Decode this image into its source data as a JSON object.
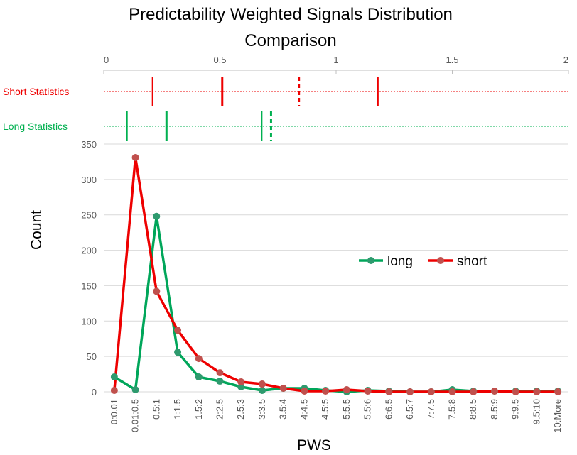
{
  "chart_data": {
    "type": "line",
    "title_line1": "Predictability Weighted Signals Distribution",
    "title_line2": "Comparison",
    "xlabel": "PWS",
    "ylabel": "Count",
    "ylim": [
      0,
      350
    ],
    "yticks": [
      "0",
      "50",
      "100",
      "150",
      "200",
      "250",
      "300",
      "350"
    ],
    "grid": true,
    "legend_position": "center-right",
    "categories": [
      "0:0.01",
      "0.01:0.5",
      "0.5:1",
      "1:1.5",
      "1.5:2",
      "2:2.5",
      "2.5:3",
      "3:3.5",
      "3.5:4",
      "4:4.5",
      "4.5:5",
      "5:5.5",
      "5.5:6",
      "6:6.5",
      "6.5:7",
      "7:7.5",
      "7.5:8",
      "8:8.5",
      "8.5:9",
      "9:9.5",
      "9.5:10",
      "10:More"
    ],
    "series": [
      {
        "name": "long",
        "color": "#00a65a",
        "marker_color": "#2e9a6e",
        "values": [
          21,
          3,
          248,
          56,
          21,
          15,
          7,
          2,
          5,
          5,
          2,
          0,
          2,
          1,
          0,
          0,
          3,
          1,
          1,
          1,
          1,
          1
        ]
      },
      {
        "name": "short",
        "color": "#ee0000",
        "marker_color": "#c0504d",
        "values": [
          2,
          331,
          142,
          87,
          47,
          27,
          14,
          11,
          5,
          1,
          1,
          3,
          1,
          0,
          0,
          0,
          0,
          0,
          1,
          0,
          0,
          0
        ]
      }
    ],
    "top_axis": {
      "range": [
        0,
        2
      ],
      "ticks": [
        "0",
        "0.5",
        "1",
        "1.5",
        "2"
      ]
    },
    "statistics": [
      {
        "label": "Short Statistics",
        "color": "#ee0000",
        "markers": [
          {
            "value": 0.21,
            "style": "solid",
            "weight": "thin"
          },
          {
            "value": 0.51,
            "style": "solid",
            "weight": "thick"
          },
          {
            "value": 0.84,
            "style": "dashed",
            "weight": "thick"
          },
          {
            "value": 1.18,
            "style": "solid",
            "weight": "thin"
          }
        ]
      },
      {
        "label": "Long Statistics",
        "color": "#00b050",
        "markers": [
          {
            "value": 0.1,
            "style": "solid",
            "weight": "thin"
          },
          {
            "value": 0.27,
            "style": "solid",
            "weight": "thick"
          },
          {
            "value": 0.68,
            "style": "solid",
            "weight": "thin"
          },
          {
            "value": 0.72,
            "style": "dashed",
            "weight": "thick"
          }
        ]
      }
    ]
  }
}
